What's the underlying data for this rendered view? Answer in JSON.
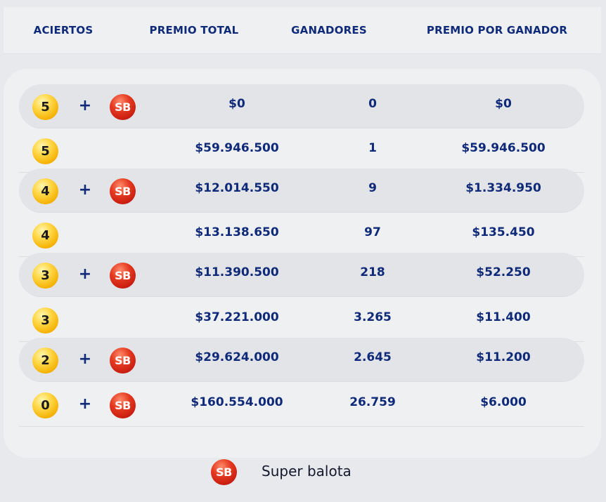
{
  "header": {
    "aciertos": "ACIERTOS",
    "premio_total": "PREMIO TOTAL",
    "ganadores": "GANADORES",
    "premio_por_ganador": "PREMIO POR GANADOR"
  },
  "plus_symbol": "+",
  "sb_label": "SB",
  "rows": [
    {
      "hits": "5",
      "super": true,
      "total": "$0",
      "winners": "0",
      "per_winner": "$0"
    },
    {
      "hits": "5",
      "super": false,
      "total": "$59.946.500",
      "winners": "1",
      "per_winner": "$59.946.500"
    },
    {
      "hits": "4",
      "super": true,
      "total": "$12.014.550",
      "winners": "9",
      "per_winner": "$1.334.950"
    },
    {
      "hits": "4",
      "super": false,
      "total": "$13.138.650",
      "winners": "97",
      "per_winner": "$135.450"
    },
    {
      "hits": "3",
      "super": true,
      "total": "$11.390.500",
      "winners": "218",
      "per_winner": "$52.250"
    },
    {
      "hits": "3",
      "super": false,
      "total": "$37.221.000",
      "winners": "3.265",
      "per_winner": "$11.400"
    },
    {
      "hits": "2",
      "super": true,
      "total": "$29.624.000",
      "winners": "2.645",
      "per_winner": "$11.200"
    },
    {
      "hits": "0",
      "super": true,
      "total": "$160.554.000",
      "winners": "26.759",
      "per_winner": "$6.000"
    }
  ],
  "legend": {
    "ball_label": "SB",
    "text": "Super balota"
  },
  "colors": {
    "text_primary": "#0f2a78",
    "ball_yellow": "#f4b000",
    "ball_red": "#c81e12",
    "row_shade": "#e3e4e8"
  }
}
